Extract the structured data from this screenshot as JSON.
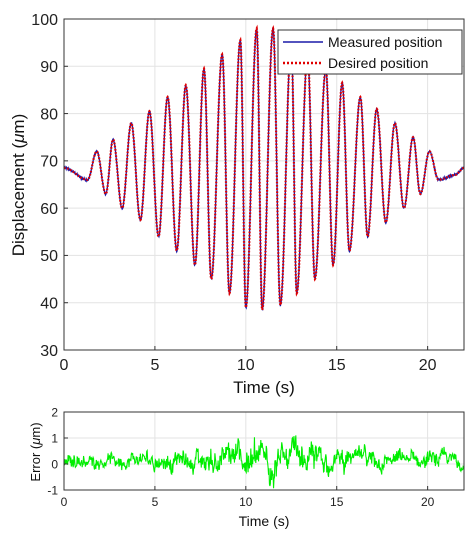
{
  "chart_data": [
    {
      "type": "line",
      "xlabel": "Time (s)",
      "ylabel_prefix": "Displacement (",
      "ylabel_unit_greek": "μ",
      "ylabel_suffix": "m)",
      "xlim": [
        0,
        22
      ],
      "ylim": [
        30,
        100
      ],
      "xticks": [
        0,
        5,
        10,
        15,
        20
      ],
      "yticks": [
        30,
        40,
        50,
        60,
        70,
        80,
        90,
        100
      ],
      "grid": true,
      "legend_position": "top-right",
      "signal_model": {
        "description_note": "",
        "mean": 69,
        "peak_time": 11,
        "peak_amplitude": 30,
        "base_amplitude": 1.5,
        "start_phase_offset": 0.2,
        "sample_step": 0.02,
        "x_start": 0,
        "x_end": 22
      },
      "series": [
        {
          "name": "Measured position",
          "color": "#1a1aa8",
          "style": "solid"
        },
        {
          "name": "Desired position",
          "color": "#e00000",
          "style": "dotted"
        }
      ],
      "peak_values_read": [
        {
          "x": 1.8,
          "y": 72
        },
        {
          "x": 2.7,
          "y": 74.5
        },
        {
          "x": 3.7,
          "y": 78
        },
        {
          "x": 4.7,
          "y": 80.5
        },
        {
          "x": 5.7,
          "y": 83.5
        },
        {
          "x": 6.7,
          "y": 86
        },
        {
          "x": 7.7,
          "y": 89.5
        },
        {
          "x": 8.7,
          "y": 92.5
        },
        {
          "x": 9.7,
          "y": 95.5
        },
        {
          "x": 10.6,
          "y": 98
        },
        {
          "x": 11.5,
          "y": 98
        },
        {
          "x": 12.5,
          "y": 95
        },
        {
          "x": 13.4,
          "y": 92.5
        },
        {
          "x": 14.4,
          "y": 89.5
        },
        {
          "x": 15.3,
          "y": 86.5
        },
        {
          "x": 16.3,
          "y": 83.5
        },
        {
          "x": 17.2,
          "y": 81
        },
        {
          "x": 18.2,
          "y": 78
        },
        {
          "x": 19.2,
          "y": 75
        },
        {
          "x": 20.1,
          "y": 72
        }
      ],
      "trough_values_read": [
        {
          "x": 1.3,
          "y": 66
        },
        {
          "x": 2.3,
          "y": 63
        },
        {
          "x": 3.2,
          "y": 60
        },
        {
          "x": 4.2,
          "y": 57.5
        },
        {
          "x": 5.2,
          "y": 54
        },
        {
          "x": 6.2,
          "y": 51
        },
        {
          "x": 7.2,
          "y": 48
        },
        {
          "x": 8.1,
          "y": 45
        },
        {
          "x": 9.1,
          "y": 42
        },
        {
          "x": 10.0,
          "y": 39
        },
        {
          "x": 10.9,
          "y": 38.5
        },
        {
          "x": 11.9,
          "y": 39.5
        },
        {
          "x": 12.8,
          "y": 42
        },
        {
          "x": 13.8,
          "y": 45
        },
        {
          "x": 14.8,
          "y": 48
        },
        {
          "x": 15.7,
          "y": 51
        },
        {
          "x": 16.7,
          "y": 54
        },
        {
          "x": 17.7,
          "y": 57
        },
        {
          "x": 18.7,
          "y": 60
        },
        {
          "x": 19.6,
          "y": 63
        },
        {
          "x": 20.6,
          "y": 66
        },
        {
          "x": 21.5,
          "y": 67
        }
      ]
    },
    {
      "type": "line",
      "xlabel": "Time (s)",
      "ylabel_prefix": "Error (",
      "ylabel_unit_greek": "μ",
      "ylabel_suffix": "m)",
      "xlim": [
        0,
        22
      ],
      "ylim": [
        -1,
        2
      ],
      "xticks": [
        0,
        5,
        10,
        15,
        20
      ],
      "yticks": [
        -1,
        0,
        1,
        2
      ],
      "grid": true,
      "series": [
        {
          "name": "",
          "color": "#00ee00",
          "style": "solid"
        }
      ],
      "noise_model": {
        "mean": 0.15,
        "amplitude_low": 0.35,
        "amplitude_high": 0.75,
        "sample_step": 0.025
      }
    }
  ]
}
